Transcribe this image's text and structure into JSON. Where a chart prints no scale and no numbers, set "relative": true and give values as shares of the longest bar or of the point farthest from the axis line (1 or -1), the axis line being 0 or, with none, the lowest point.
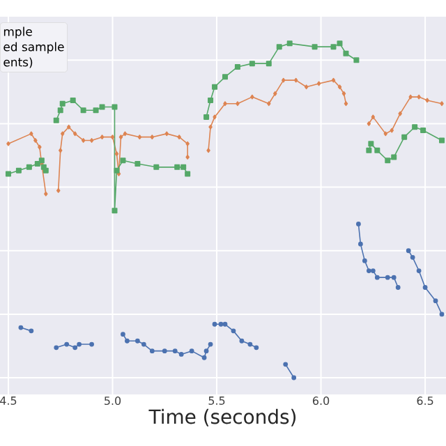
{
  "chart_data": {
    "type": "line",
    "xlabel": "Time (seconds)",
    "relative": true,
    "grid": true,
    "xlim": [
      4.46,
      6.6
    ],
    "xticks": [
      {
        "value": 4.5,
        "label": "4.5"
      },
      {
        "value": 5,
        "label": "5.0"
      },
      5.5,
      {
        "value": 6,
        "label": "6.0"
      },
      6.5
    ],
    "annotations": [
      "mple",
      "ed sample",
      "ents)"
    ],
    "series": [
      {
        "color": "#4c72b0",
        "marker": "circle",
        "x": [
          4.56,
          4.61,
          4.65,
          4.73,
          4.78,
          4.82,
          4.84,
          4.9,
          4.95,
          5.05,
          5.07,
          5.12,
          5.15,
          5.19,
          5.25,
          5.3,
          5.33,
          5.38,
          5.44,
          5.45,
          5.47,
          5.48,
          5.49,
          5.52,
          5.54,
          5.58,
          5.62,
          5.66,
          5.69,
          5.75,
          5.83,
          5.87,
          6.0,
          6.18,
          6.19,
          6.21,
          6.23,
          6.25,
          6.27,
          6.32,
          6.35,
          6.37,
          6.4,
          6.42,
          6.44,
          6.47,
          6.5,
          6.55,
          6.58
        ],
        "values": [
          0.15,
          0.14,
          null,
          0.09,
          0.1,
          0.09,
          0.1,
          0.1,
          null,
          0.13,
          0.11,
          0.11,
          0.1,
          0.08,
          0.08,
          0.08,
          0.07,
          0.08,
          0.06,
          0.08,
          0.1,
          null,
          0.16,
          0.16,
          0.16,
          0.14,
          0.11,
          0.1,
          0.09,
          null,
          0.04,
          0,
          null,
          0.46,
          0.4,
          0.35,
          0.32,
          0.32,
          0.3,
          0.3,
          0.3,
          0.27,
          null,
          0.38,
          0.36,
          0.32,
          0.27,
          0.23,
          0.19
        ]
      },
      {
        "color": "#dd8452",
        "marker": "diamond",
        "x": [
          4.5,
          4.61,
          4.63,
          4.65,
          4.66,
          4.68,
          4.7,
          4.74,
          4.75,
          4.76,
          4.79,
          4.82,
          4.86,
          4.9,
          4.95,
          5.0,
          5.02,
          5.03,
          5.04,
          5.06,
          5.13,
          5.19,
          5.26,
          5.32,
          5.36,
          5.36,
          5.4,
          5.46,
          5.47,
          5.49,
          5.54,
          5.6,
          5.67,
          5.75,
          5.78,
          5.82,
          5.88,
          5.93,
          5.99,
          6.06,
          6.09,
          6.11,
          6.12,
          6.2,
          6.23,
          6.25,
          6.31,
          6.34,
          6.38,
          6.43,
          6.47,
          6.51,
          6.58
        ],
        "values": [
          0.7,
          0.73,
          0.71,
          0.69,
          0.64,
          0.55,
          null,
          0.56,
          0.68,
          0.73,
          0.75,
          0.73,
          0.71,
          0.71,
          0.72,
          0.72,
          0.67,
          0.61,
          0.72,
          0.73,
          0.72,
          0.72,
          0.73,
          0.72,
          0.7,
          0.66,
          null,
          0.68,
          0.75,
          0.78,
          0.82,
          0.82,
          0.84,
          0.82,
          0.85,
          0.89,
          0.89,
          0.87,
          0.88,
          0.89,
          0.87,
          0.85,
          0.82,
          null,
          0.76,
          0.78,
          0.73,
          0.74,
          0.79,
          0.84,
          0.84,
          0.83,
          0.82
        ]
      },
      {
        "color": "#55a868",
        "marker": "square",
        "x": [
          4.5,
          4.55,
          4.6,
          4.64,
          4.66,
          4.67,
          4.68,
          4.7,
          4.73,
          4.75,
          4.76,
          4.81,
          4.86,
          4.92,
          4.95,
          5.01,
          5.01,
          5.02,
          5.05,
          5.12,
          5.21,
          5.31,
          5.34,
          5.36,
          5.4,
          5.45,
          5.47,
          5.49,
          5.54,
          5.6,
          5.67,
          5.75,
          5.8,
          5.85,
          5.97,
          6.06,
          6.09,
          6.12,
          6.17,
          6.2,
          6.23,
          6.24,
          6.27,
          6.32,
          6.35,
          6.4,
          6.45,
          6.49,
          6.58
        ],
        "values": [
          0.61,
          0.62,
          0.63,
          0.64,
          0.65,
          0.63,
          0.62,
          null,
          0.77,
          0.8,
          0.82,
          0.83,
          0.8,
          0.8,
          0.81,
          0.81,
          0.5,
          0.62,
          0.65,
          0.64,
          0.63,
          0.63,
          0.63,
          0.61,
          null,
          0.78,
          0.83,
          0.87,
          0.9,
          0.93,
          0.94,
          0.94,
          0.99,
          1.0,
          0.99,
          0.99,
          1.0,
          0.97,
          0.95,
          null,
          0.68,
          0.7,
          0.68,
          0.65,
          0.66,
          0.72,
          0.75,
          0.74,
          0.71
        ]
      }
    ]
  }
}
